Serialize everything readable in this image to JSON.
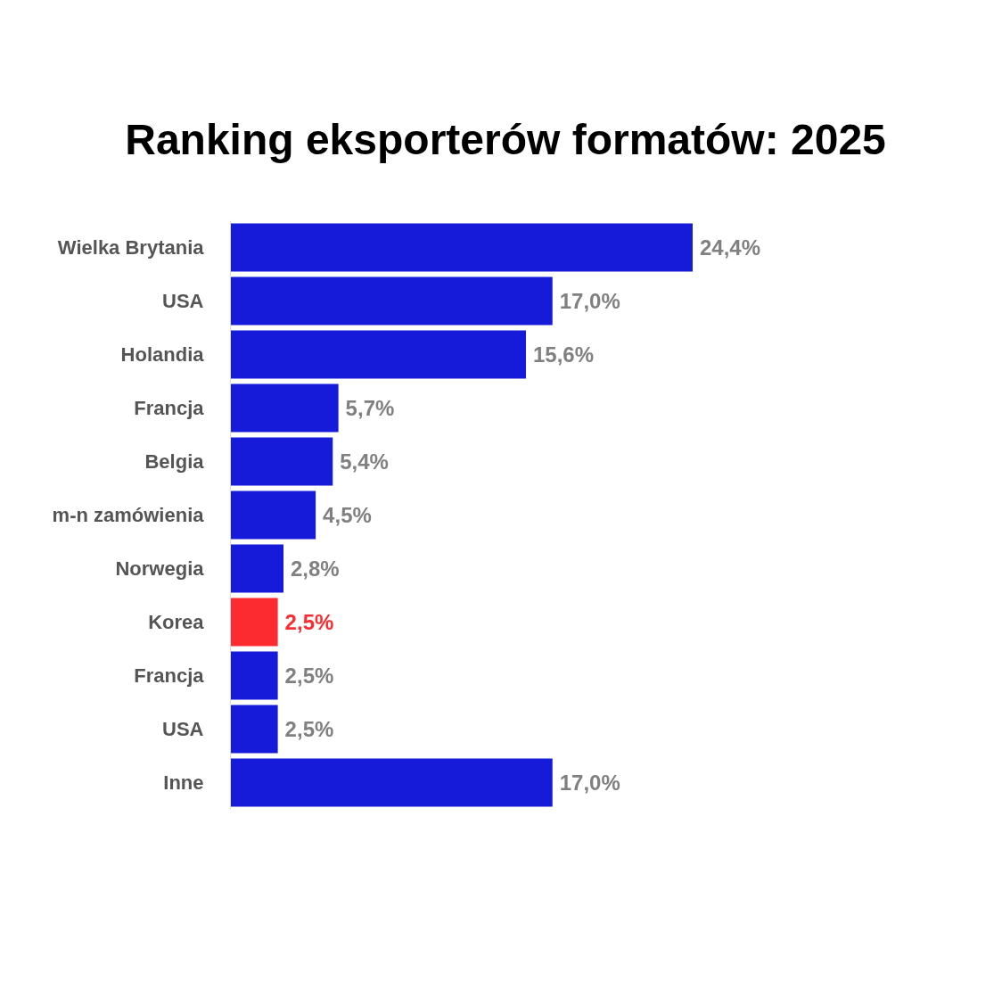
{
  "chart_data": {
    "type": "bar",
    "orientation": "horizontal",
    "title": "Ranking eksporterów formatów: 2025",
    "categories": [
      "Wielka Brytania",
      "USA",
      "Holandia",
      "Francja",
      "Belgia",
      "m-n zamówienia",
      "Norwegia",
      "Korea",
      "Francja",
      "USA",
      "Inne"
    ],
    "values": [
      24.4,
      17.0,
      15.6,
      5.7,
      5.4,
      4.5,
      2.8,
      2.5,
      2.5,
      2.5,
      17.0
    ],
    "colors": [
      "#161bd9",
      "#161bd9",
      "#161bd9",
      "#161bd9",
      "#161bd9",
      "#161bd9",
      "#161bd9",
      "#fc2b30",
      "#161bd9",
      "#161bd9",
      "#161bd9"
    ],
    "value_labels": [
      "24,4%",
      "17,0%",
      "15,6%",
      "5,7%",
      "5,4%",
      "4,5%",
      "2,8%",
      "2,5%",
      "2,5%",
      "2,5%",
      "17,0%"
    ],
    "tick_labels": "y"
  }
}
